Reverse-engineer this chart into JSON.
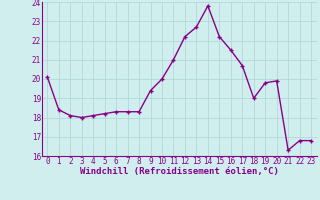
{
  "x": [
    0,
    1,
    2,
    3,
    4,
    5,
    6,
    7,
    8,
    9,
    10,
    11,
    12,
    13,
    14,
    15,
    16,
    17,
    18,
    19,
    20,
    21,
    22,
    23
  ],
  "y": [
    20.1,
    18.4,
    18.1,
    18.0,
    18.1,
    18.2,
    18.3,
    18.3,
    18.3,
    19.4,
    20.0,
    21.0,
    22.2,
    22.7,
    23.8,
    22.2,
    21.5,
    20.7,
    19.0,
    19.8,
    19.9,
    16.3,
    16.8,
    16.8
  ],
  "line_color": "#880088",
  "marker": "+",
  "bg_color": "#d0eeee",
  "grid_color": "#b0d8d8",
  "xlabel": "Windchill (Refroidissement éolien,°C)",
  "xlabel_color": "#880088",
  "ylim": [
    16,
    24
  ],
  "xlim": [
    -0.5,
    23.5
  ],
  "yticks": [
    16,
    17,
    18,
    19,
    20,
    21,
    22,
    23,
    24
  ],
  "xticks": [
    0,
    1,
    2,
    3,
    4,
    5,
    6,
    7,
    8,
    9,
    10,
    11,
    12,
    13,
    14,
    15,
    16,
    17,
    18,
    19,
    20,
    21,
    22,
    23
  ],
  "tick_fontsize": 5.5,
  "xlabel_fontsize": 6.5,
  "linewidth": 1.0,
  "markersize": 3.5,
  "markeredgewidth": 1.0
}
